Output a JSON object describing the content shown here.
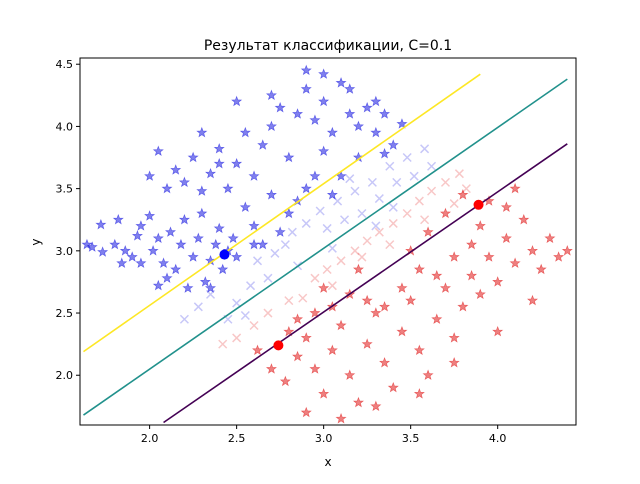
{
  "chart_data": {
    "type": "scatter",
    "title": "Результат классификации, C=0.1",
    "xlabel": "x",
    "ylabel": "y",
    "xlim": [
      1.6,
      4.45
    ],
    "ylim": [
      1.6,
      4.55
    ],
    "grid": false,
    "xticks": [
      {
        "v": 2.0,
        "label": "2.0"
      },
      {
        "v": 2.5,
        "label": "2.5"
      },
      {
        "v": 3.0,
        "label": "3.0"
      },
      {
        "v": 3.5,
        "label": "3.5"
      },
      {
        "v": 4.0,
        "label": "4.0"
      }
    ],
    "yticks": [
      {
        "v": 2.0,
        "label": "2.0"
      },
      {
        "v": 2.5,
        "label": "2.5"
      },
      {
        "v": 3.0,
        "label": "3.0"
      },
      {
        "v": 3.5,
        "label": "3.5"
      },
      {
        "v": 4.0,
        "label": "4.0"
      },
      {
        "v": 4.5,
        "label": "4.5"
      }
    ],
    "colors": {
      "class1": "#0000dd",
      "class2": "#dd0000",
      "line_upper": "#fde725",
      "line_mid": "#21918c",
      "line_lower": "#440154",
      "sv1": "#0000ff",
      "sv2": "#ff0000"
    },
    "lines": [
      {
        "name": "upper margin",
        "color_key": "line_upper",
        "x": [
          1.62,
          3.9
        ],
        "y": [
          2.19,
          4.42
        ]
      },
      {
        "name": "decision boundary",
        "color_key": "line_mid",
        "x": [
          1.62,
          4.4
        ],
        "y": [
          1.68,
          4.38
        ]
      },
      {
        "name": "lower margin",
        "color_key": "line_lower",
        "x": [
          2.08,
          4.4
        ],
        "y": [
          1.62,
          3.86
        ]
      }
    ],
    "support_vectors": [
      {
        "x": 2.43,
        "y": 2.97,
        "color_key": "sv1"
      },
      {
        "x": 2.74,
        "y": 2.24,
        "color_key": "sv2"
      },
      {
        "x": 3.89,
        "y": 3.37,
        "color_key": "sv2"
      }
    ],
    "series": [
      {
        "class": "1",
        "correct": true,
        "marker": "star",
        "color_key": "class1",
        "points": [
          [
            1.64,
            3.05
          ],
          [
            1.67,
            3.03
          ],
          [
            1.72,
            3.21
          ],
          [
            1.73,
            2.99
          ],
          [
            1.8,
            3.05
          ],
          [
            1.82,
            3.25
          ],
          [
            1.84,
            2.9
          ],
          [
            1.86,
            3.0
          ],
          [
            1.9,
            2.95
          ],
          [
            1.93,
            3.12
          ],
          [
            1.95,
            3.2
          ],
          [
            2.0,
            3.28
          ],
          [
            2.02,
            3.0
          ],
          [
            2.05,
            3.1
          ],
          [
            2.08,
            2.9
          ],
          [
            2.1,
            2.78
          ],
          [
            2.12,
            3.15
          ],
          [
            2.15,
            2.85
          ],
          [
            2.18,
            3.05
          ],
          [
            2.2,
            3.25
          ],
          [
            2.22,
            2.7
          ],
          [
            2.25,
            2.95
          ],
          [
            2.28,
            3.1
          ],
          [
            2.3,
            3.3
          ],
          [
            2.32,
            2.75
          ],
          [
            2.35,
            2.92
          ],
          [
            2.38,
            3.05
          ],
          [
            2.4,
            3.18
          ],
          [
            2.42,
            2.85
          ],
          [
            2.45,
            3.0
          ],
          [
            2.48,
            3.1
          ],
          [
            2.5,
            2.95
          ],
          [
            2.1,
            3.5
          ],
          [
            2.15,
            3.65
          ],
          [
            2.2,
            3.55
          ],
          [
            2.25,
            3.75
          ],
          [
            2.3,
            3.48
          ],
          [
            2.35,
            3.62
          ],
          [
            2.4,
            3.82
          ],
          [
            2.45,
            3.5
          ],
          [
            2.5,
            3.7
          ],
          [
            2.55,
            3.95
          ],
          [
            2.6,
            3.6
          ],
          [
            2.65,
            3.85
          ],
          [
            2.7,
            4.0
          ],
          [
            2.75,
            4.15
          ],
          [
            2.8,
            3.75
          ],
          [
            2.85,
            4.1
          ],
          [
            2.9,
            4.3
          ],
          [
            2.95,
            4.05
          ],
          [
            3.0,
            4.2
          ],
          [
            3.05,
            3.95
          ],
          [
            3.1,
            4.35
          ],
          [
            3.15,
            4.1
          ],
          [
            3.2,
            4.0
          ],
          [
            3.25,
            4.15
          ],
          [
            3.3,
            3.95
          ],
          [
            3.35,
            4.1
          ],
          [
            3.4,
            3.85
          ],
          [
            3.2,
            3.75
          ],
          [
            3.1,
            3.6
          ],
          [
            3.0,
            3.8
          ],
          [
            2.9,
            3.5
          ],
          [
            2.8,
            3.3
          ],
          [
            2.7,
            3.45
          ],
          [
            2.6,
            3.2
          ],
          [
            2.55,
            3.35
          ],
          [
            2.65,
            3.05
          ],
          [
            2.75,
            3.15
          ],
          [
            2.85,
            3.4
          ],
          [
            2.95,
            3.6
          ],
          [
            3.05,
            3.45
          ],
          [
            2.0,
            3.6
          ],
          [
            2.05,
            3.8
          ],
          [
            2.3,
            3.95
          ],
          [
            2.4,
            3.7
          ],
          [
            2.5,
            4.2
          ],
          [
            2.7,
            4.25
          ],
          [
            2.9,
            4.45
          ],
          [
            3.0,
            4.42
          ],
          [
            3.15,
            4.3
          ],
          [
            3.3,
            4.2
          ],
          [
            3.45,
            4.02
          ],
          [
            3.35,
            3.78
          ],
          [
            2.05,
            2.72
          ],
          [
            1.95,
            2.9
          ],
          [
            2.35,
            2.7
          ],
          [
            2.6,
            3.05
          ]
        ]
      },
      {
        "class": "1",
        "correct": false,
        "marker": "x",
        "color_key": "class1",
        "points": [
          [
            2.2,
            2.45
          ],
          [
            2.28,
            2.55
          ],
          [
            2.35,
            2.65
          ],
          [
            2.5,
            2.58
          ],
          [
            2.58,
            2.72
          ],
          [
            2.62,
            2.92
          ],
          [
            2.68,
            2.78
          ],
          [
            2.72,
            2.98
          ],
          [
            2.78,
            3.05
          ],
          [
            2.82,
            3.15
          ],
          [
            2.9,
            3.22
          ],
          [
            2.98,
            3.32
          ],
          [
            3.02,
            3.18
          ],
          [
            3.08,
            3.4
          ],
          [
            3.12,
            3.25
          ],
          [
            3.18,
            3.48
          ],
          [
            3.22,
            3.3
          ],
          [
            3.28,
            3.55
          ],
          [
            3.32,
            3.42
          ],
          [
            3.38,
            3.68
          ],
          [
            3.42,
            3.55
          ],
          [
            3.48,
            3.75
          ],
          [
            3.52,
            3.6
          ],
          [
            3.58,
            3.82
          ],
          [
            3.62,
            3.68
          ],
          [
            2.45,
            2.45
          ],
          [
            3.05,
            3.02
          ],
          [
            3.15,
            3.58
          ],
          [
            3.3,
            3.2
          ],
          [
            3.4,
            3.35
          ],
          [
            2.85,
            2.88
          ],
          [
            2.55,
            2.48
          ]
        ]
      },
      {
        "class": "2",
        "correct": true,
        "marker": "star",
        "color_key": "class2",
        "points": [
          [
            2.62,
            2.2
          ],
          [
            2.7,
            2.05
          ],
          [
            2.78,
            1.95
          ],
          [
            2.85,
            2.15
          ],
          [
            2.9,
            2.3
          ],
          [
            2.95,
            2.05
          ],
          [
            3.0,
            1.85
          ],
          [
            3.05,
            2.2
          ],
          [
            3.1,
            2.4
          ],
          [
            3.15,
            2.0
          ],
          [
            3.2,
            1.78
          ],
          [
            3.25,
            2.25
          ],
          [
            3.3,
            2.5
          ],
          [
            3.35,
            2.1
          ],
          [
            3.4,
            1.9
          ],
          [
            3.45,
            2.35
          ],
          [
            3.5,
            2.6
          ],
          [
            3.55,
            2.2
          ],
          [
            3.6,
            2.0
          ],
          [
            3.65,
            2.45
          ],
          [
            3.7,
            2.7
          ],
          [
            3.75,
            2.3
          ],
          [
            3.8,
            2.55
          ],
          [
            3.85,
            2.8
          ],
          [
            3.9,
            2.65
          ],
          [
            3.95,
            2.95
          ],
          [
            4.0,
            2.75
          ],
          [
            4.05,
            3.1
          ],
          [
            4.1,
            2.9
          ],
          [
            4.15,
            3.25
          ],
          [
            4.2,
            3.0
          ],
          [
            4.25,
            2.85
          ],
          [
            4.3,
            3.1
          ],
          [
            4.35,
            2.95
          ],
          [
            4.4,
            3.0
          ],
          [
            3.9,
            3.2
          ],
          [
            3.95,
            3.4
          ],
          [
            3.85,
            3.05
          ],
          [
            3.75,
            2.95
          ],
          [
            3.65,
            2.8
          ],
          [
            3.55,
            2.85
          ],
          [
            3.45,
            2.7
          ],
          [
            3.35,
            2.55
          ],
          [
            3.25,
            2.6
          ],
          [
            3.15,
            2.65
          ],
          [
            3.05,
            2.55
          ],
          [
            2.95,
            2.5
          ],
          [
            2.85,
            2.45
          ],
          [
            2.8,
            2.35
          ],
          [
            3.6,
            3.15
          ],
          [
            3.7,
            3.3
          ],
          [
            3.8,
            3.45
          ],
          [
            4.05,
            3.35
          ],
          [
            4.1,
            3.5
          ],
          [
            3.5,
            3.0
          ],
          [
            3.2,
            2.85
          ],
          [
            3.0,
            2.7
          ],
          [
            2.9,
            1.7
          ],
          [
            3.1,
            1.65
          ],
          [
            3.3,
            1.75
          ],
          [
            3.55,
            1.85
          ],
          [
            3.75,
            2.1
          ],
          [
            4.0,
            2.35
          ],
          [
            4.2,
            2.6
          ]
        ]
      },
      {
        "class": "2",
        "correct": false,
        "marker": "x",
        "color_key": "class2",
        "points": [
          [
            2.42,
            2.25
          ],
          [
            2.5,
            2.3
          ],
          [
            2.6,
            2.4
          ],
          [
            2.68,
            2.5
          ],
          [
            2.8,
            2.6
          ],
          [
            2.88,
            2.62
          ],
          [
            2.95,
            2.78
          ],
          [
            3.02,
            2.85
          ],
          [
            3.1,
            2.92
          ],
          [
            3.18,
            3.0
          ],
          [
            3.25,
            3.08
          ],
          [
            3.32,
            3.15
          ],
          [
            3.4,
            3.22
          ],
          [
            3.48,
            3.3
          ],
          [
            3.55,
            3.4
          ],
          [
            3.62,
            3.48
          ],
          [
            3.7,
            3.55
          ],
          [
            3.78,
            3.62
          ],
          [
            3.82,
            3.5
          ],
          [
            3.75,
            3.38
          ],
          [
            3.58,
            3.25
          ],
          [
            3.38,
            3.05
          ],
          [
            3.22,
            2.95
          ],
          [
            3.05,
            2.72
          ]
        ]
      }
    ]
  }
}
